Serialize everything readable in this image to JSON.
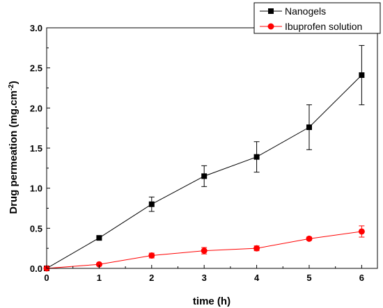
{
  "chart_data": {
    "type": "line",
    "xlabel": "time (h)",
    "ylabel_main": "Drug permeation (mg.cm",
    "ylabel_sup": "-2",
    "ylabel_end": ")",
    "xlim": [
      0,
      6.3
    ],
    "ylim": [
      0,
      3.0
    ],
    "x_ticks": [
      0,
      1,
      2,
      3,
      4,
      5,
      6
    ],
    "x_tick_labels": [
      "0",
      "1",
      "2",
      "3",
      "4",
      "5",
      "6"
    ],
    "y_ticks": [
      0,
      0.5,
      1.0,
      1.5,
      2.0,
      2.5,
      3.0
    ],
    "y_tick_labels": [
      "0.0",
      "0.5",
      "1.0",
      "1.5",
      "2.0",
      "2.5",
      "3.0"
    ],
    "grid": false,
    "legend_position": "top-right",
    "series": [
      {
        "name": "Nanogels",
        "color": "#000000",
        "marker": "square",
        "x": [
          0,
          1,
          2,
          3,
          4,
          5,
          6
        ],
        "y": [
          0,
          0.38,
          0.8,
          1.15,
          1.39,
          1.76,
          2.41
        ],
        "err": [
          0,
          0,
          0.09,
          0.13,
          0.19,
          0.28,
          0.37
        ]
      },
      {
        "name": "Ibuprofen solution",
        "color": "#ff0000",
        "marker": "circle",
        "x": [
          0,
          1,
          2,
          3,
          4,
          5,
          6
        ],
        "y": [
          0,
          0.05,
          0.16,
          0.22,
          0.25,
          0.37,
          0.46
        ],
        "err": [
          0,
          0,
          0.03,
          0.04,
          0.03,
          0.02,
          0.07
        ]
      }
    ]
  }
}
